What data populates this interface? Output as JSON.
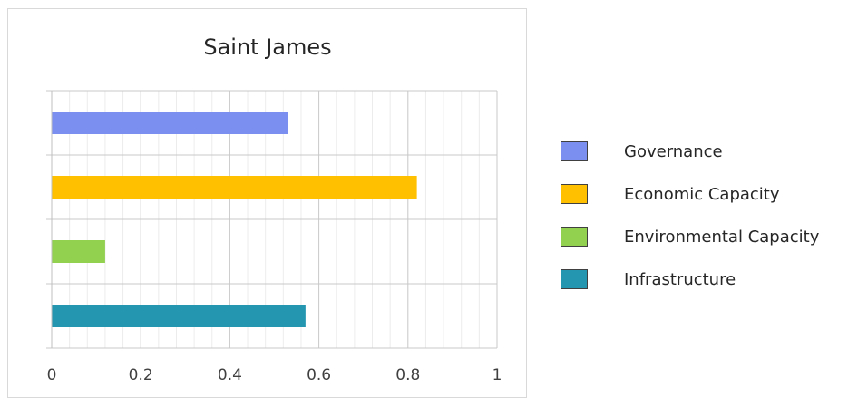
{
  "chart_data": {
    "type": "bar",
    "orientation": "horizontal",
    "title": "Saint James",
    "categories": [
      "Governance",
      "Economic Capacity",
      "Environmental Capacity",
      "Infrastructure"
    ],
    "values": [
      0.53,
      0.82,
      0.12,
      0.57
    ],
    "colors": [
      "#7b8ff0",
      "#ffc000",
      "#92d050",
      "#2596b0"
    ],
    "xlim": [
      0,
      1
    ],
    "x_ticks": [
      "0",
      "0.2",
      "0.4",
      "0.6",
      "0.8",
      "1"
    ],
    "xlabel": "",
    "ylabel": "",
    "grid": true,
    "legend": {
      "position": "right",
      "entries": [
        "Governance",
        "Economic Capacity",
        "Environmental Capacity",
        "Infrastructure"
      ]
    }
  }
}
